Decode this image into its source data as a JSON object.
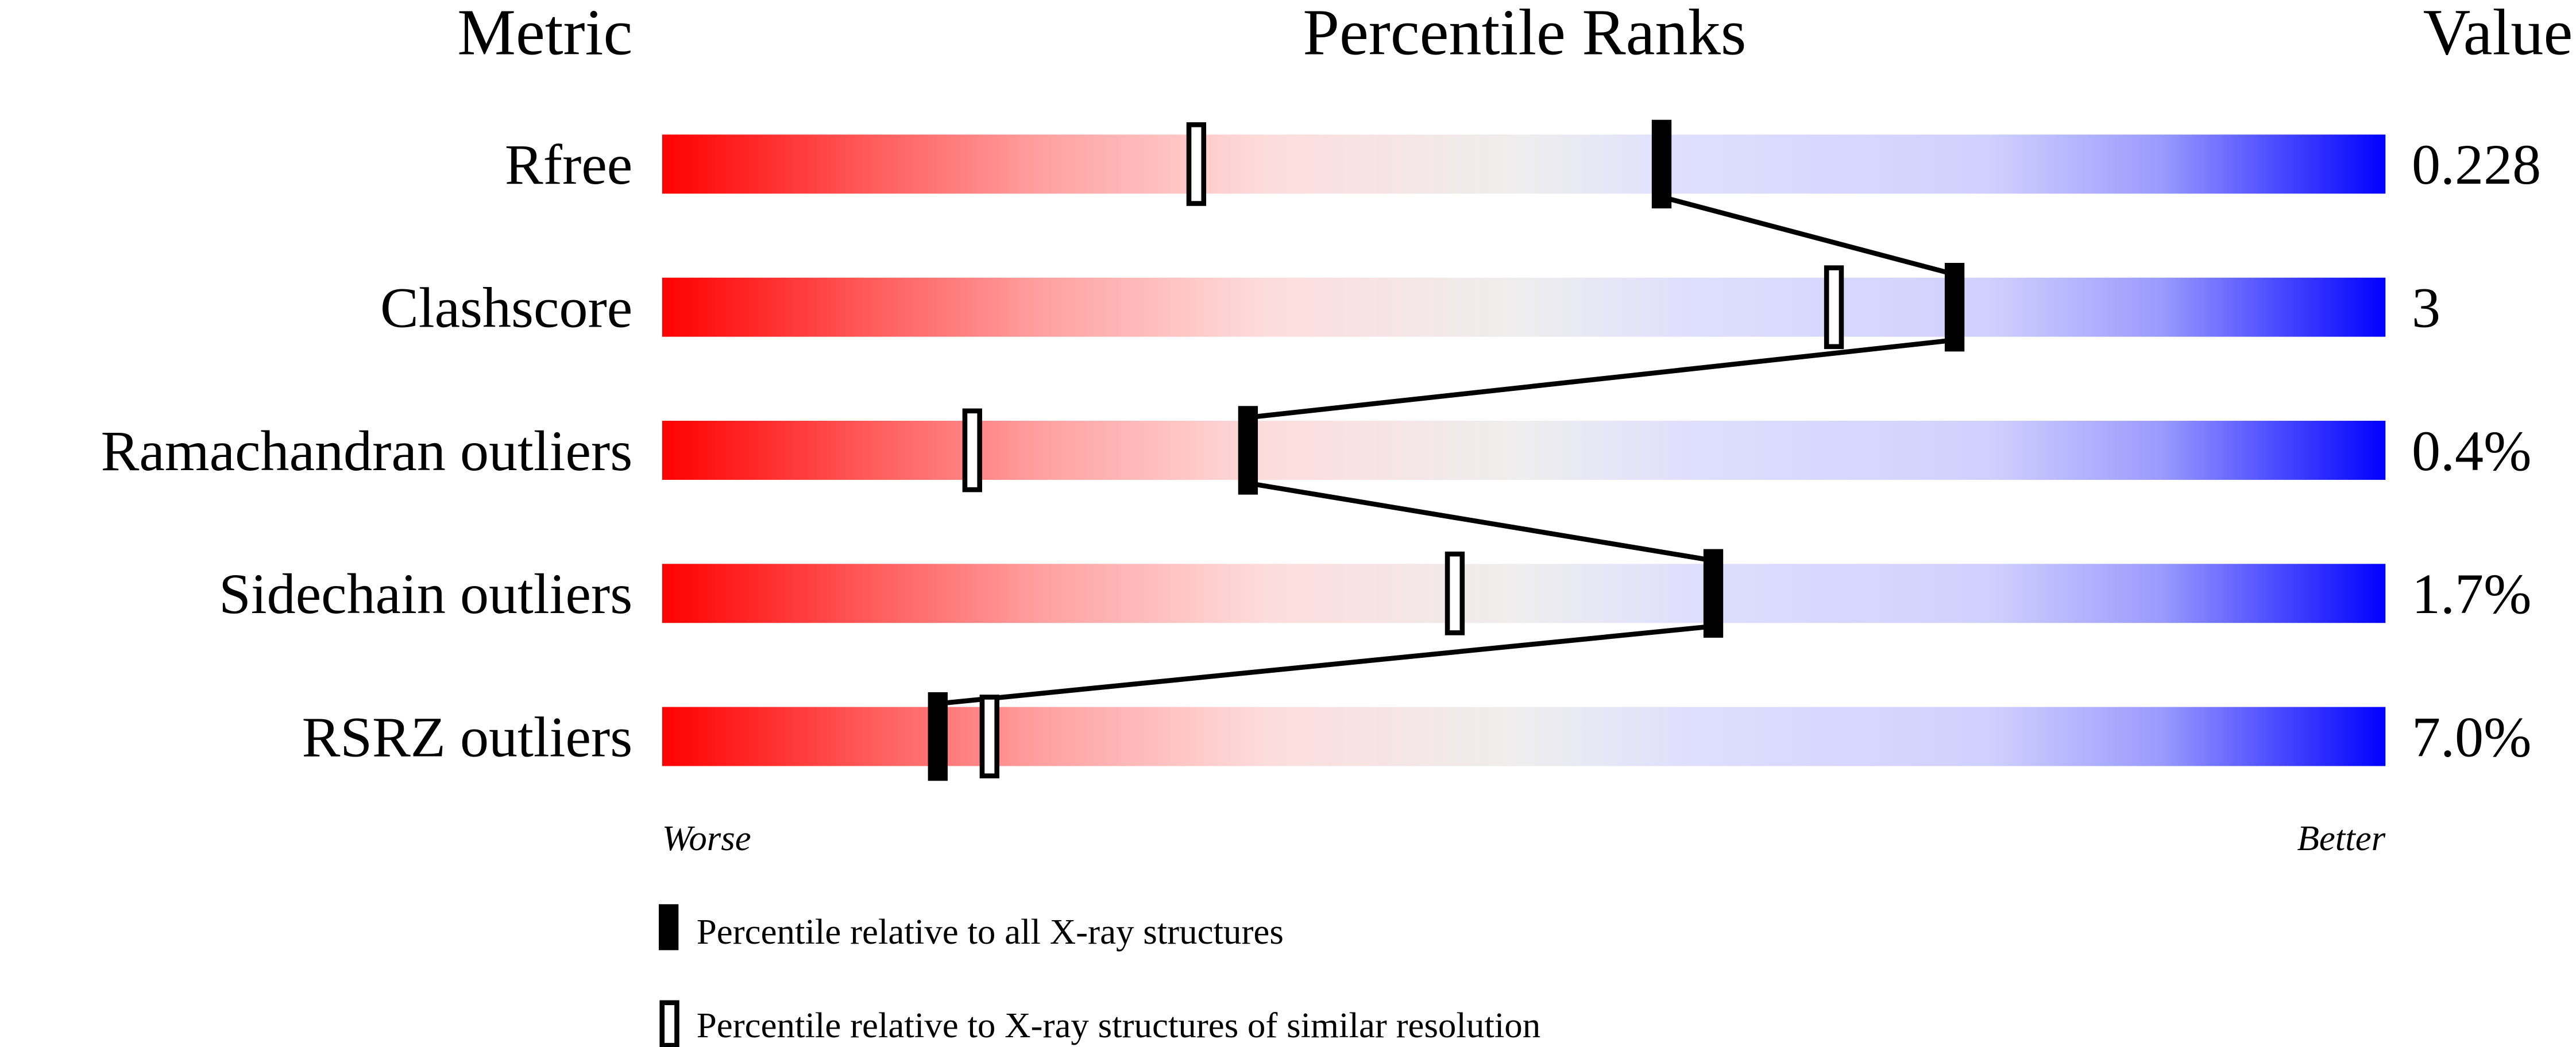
{
  "chart_data": {
    "type": "slider",
    "headers": {
      "metric": "Metric",
      "title": "Percentile Ranks",
      "value": "Value"
    },
    "axis": {
      "left_label": "Worse",
      "right_label": "Better",
      "range": [
        0,
        100
      ]
    },
    "metrics": [
      {
        "name": "Rfree",
        "value": "0.228",
        "percentile_all": 58,
        "percentile_similar": 31
      },
      {
        "name": "Clashscore",
        "value": "3",
        "percentile_all": 75,
        "percentile_similar": 68
      },
      {
        "name": "Ramachandran outliers",
        "value": "0.4%",
        "percentile_all": 34,
        "percentile_similar": 18
      },
      {
        "name": "Sidechain outliers",
        "value": "1.7%",
        "percentile_all": 61,
        "percentile_similar": 46
      },
      {
        "name": "RSRZ outliers",
        "value": "7.0%",
        "percentile_all": 16,
        "percentile_similar": 19
      }
    ],
    "legend": {
      "all": "Percentile relative to all X-ray structures",
      "similar": "Percentile relative to X-ray structures of similar resolution"
    },
    "colors": {
      "worse": "#ff0000",
      "mid": "#eeeeee",
      "better": "#0000ff",
      "marker": "#000000"
    }
  }
}
